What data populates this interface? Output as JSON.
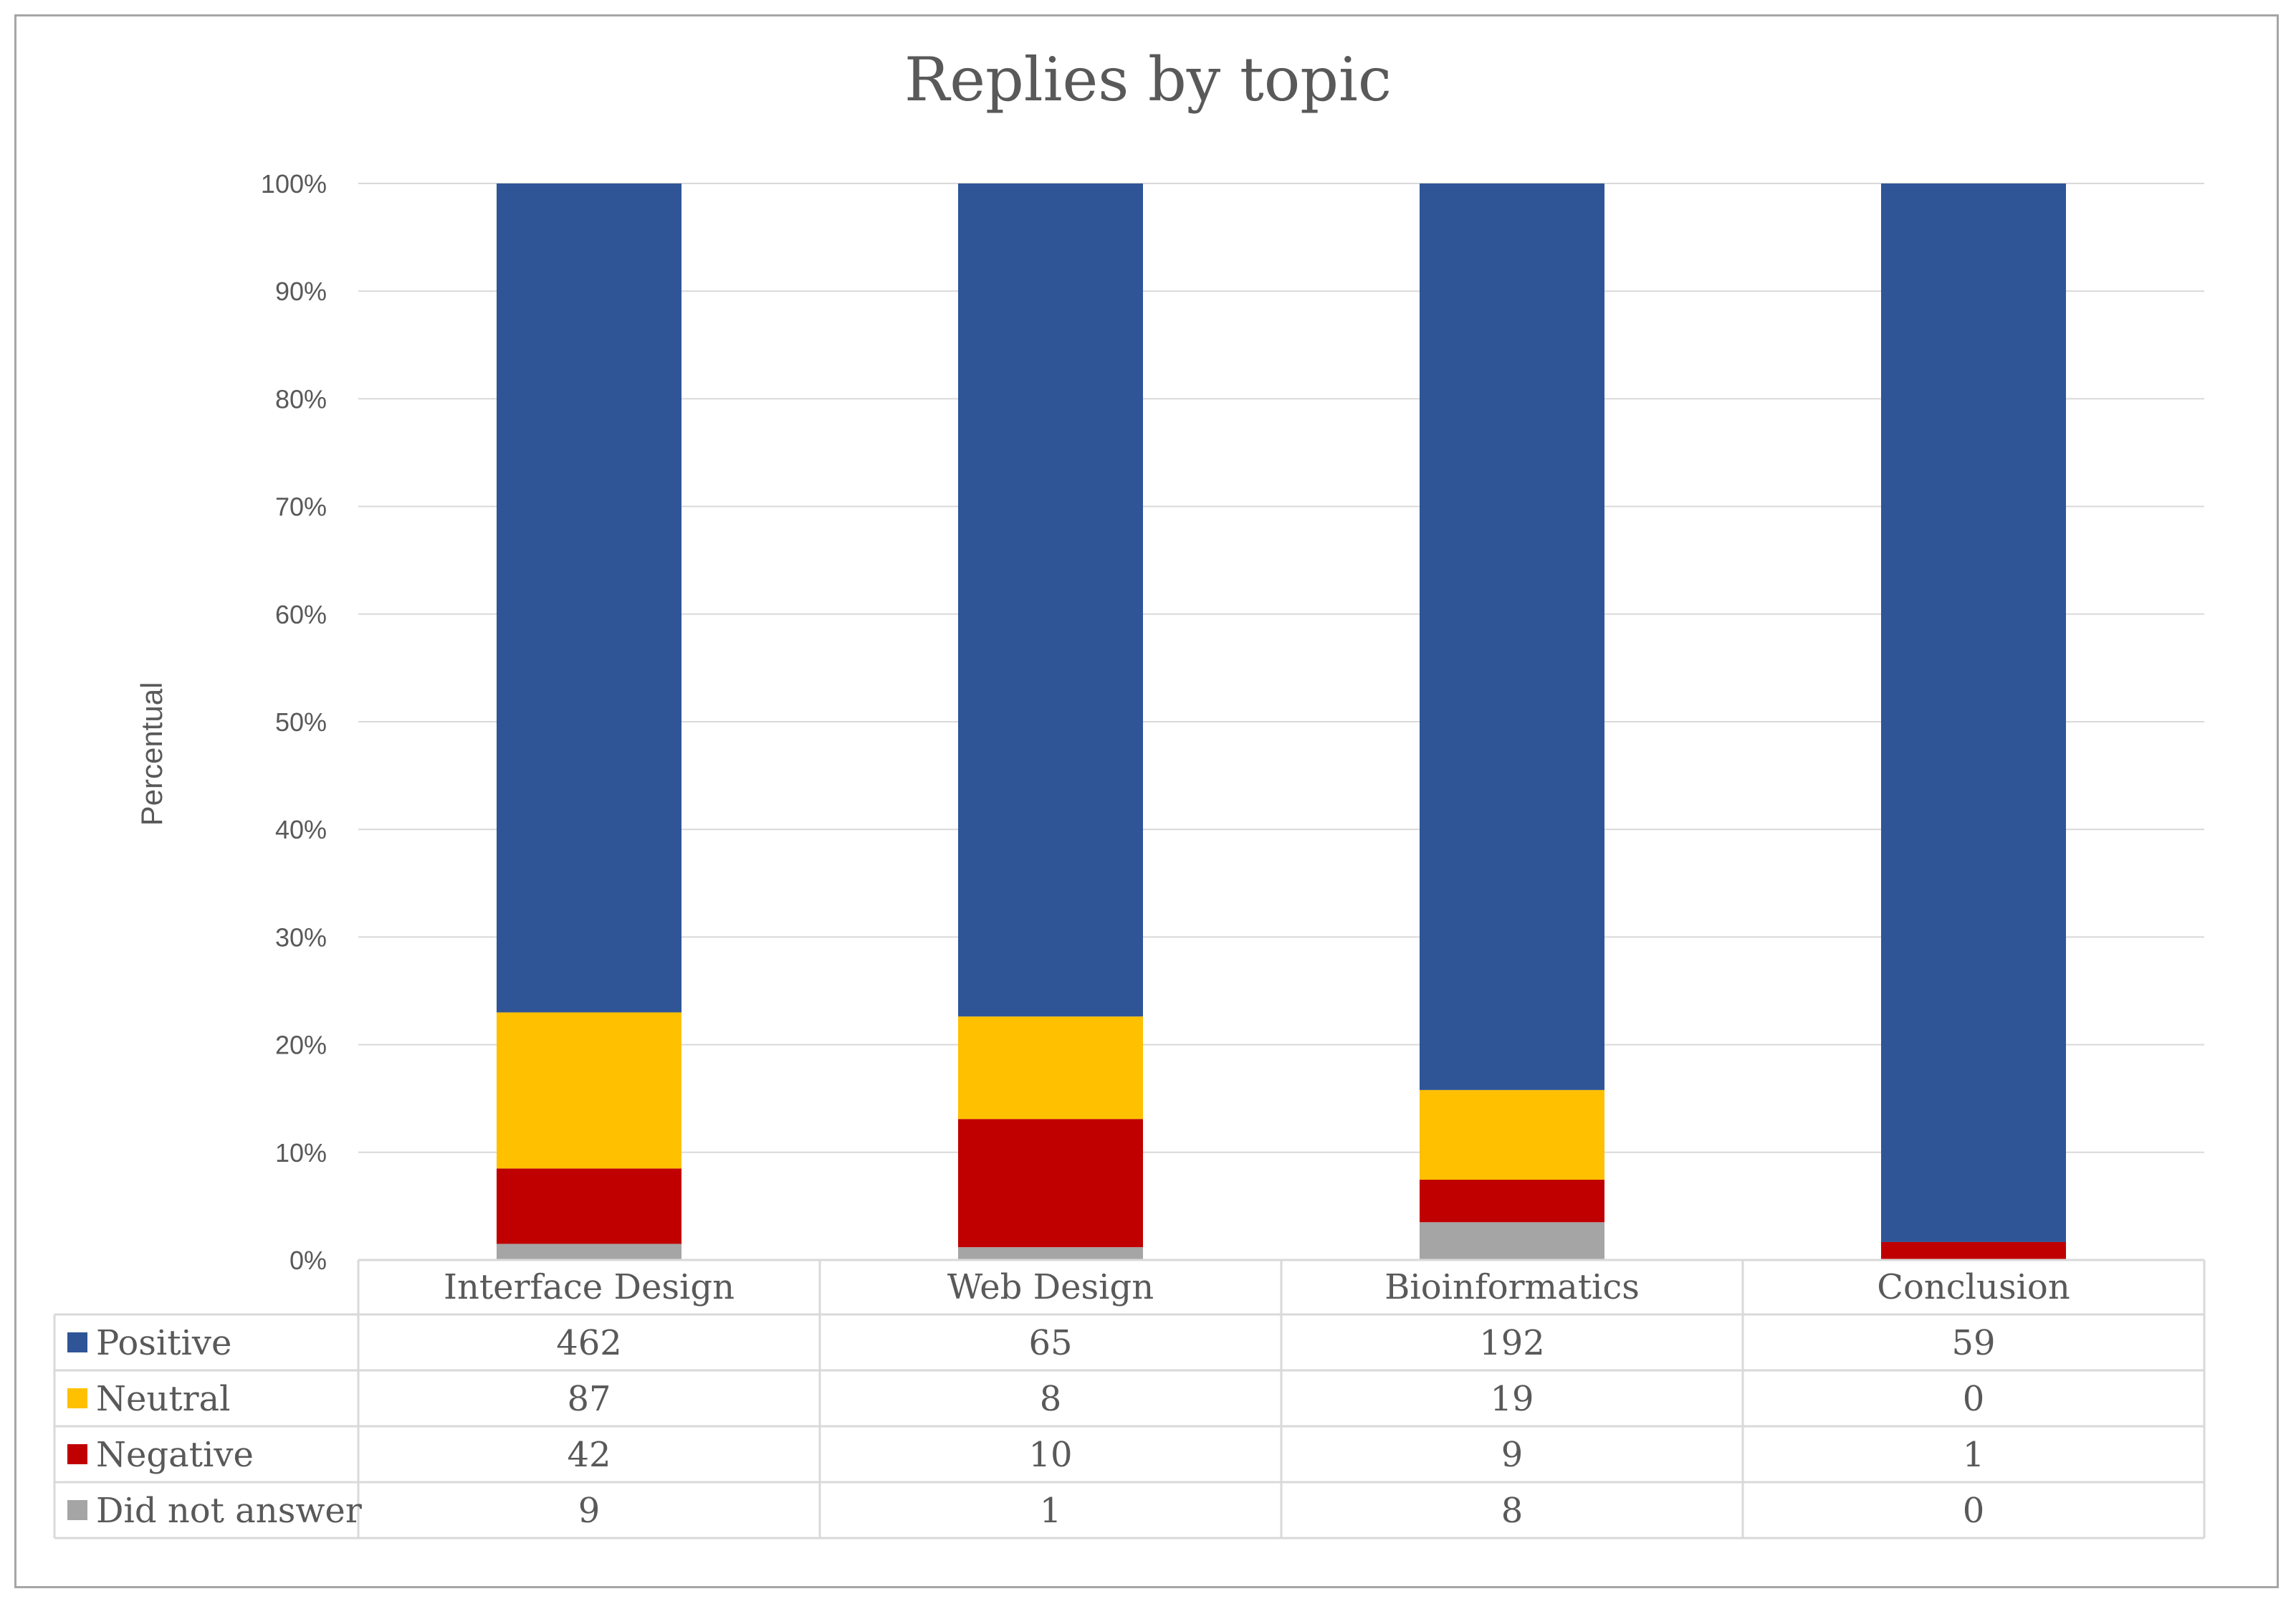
{
  "chart_data": {
    "type": "bar",
    "stacked": "percent",
    "title": "Replies by topic",
    "xlabel": "",
    "ylabel": "Percentual",
    "ylim": [
      0,
      100
    ],
    "yticks": [
      "0%",
      "10%",
      "20%",
      "30%",
      "40%",
      "50%",
      "60%",
      "70%",
      "80%",
      "90%",
      "100%"
    ],
    "grid": true,
    "legend": "data-table",
    "categories": [
      "Interface Design",
      "Web Design",
      "Bioinformatics",
      "Conclusion"
    ],
    "series": [
      {
        "name": "Did not answer",
        "color": "#a5a5a5",
        "values": [
          9,
          1,
          8,
          0
        ]
      },
      {
        "name": "Negative",
        "color": "#c00000",
        "values": [
          42,
          10,
          9,
          1
        ]
      },
      {
        "name": "Neutral",
        "color": "#ffc000",
        "values": [
          87,
          8,
          19,
          0
        ]
      },
      {
        "name": "Positive",
        "color": "#2f5597",
        "values": [
          462,
          65,
          192,
          59
        ]
      }
    ],
    "table_row_order": [
      "Positive",
      "Neutral",
      "Negative",
      "Did not answer"
    ]
  }
}
